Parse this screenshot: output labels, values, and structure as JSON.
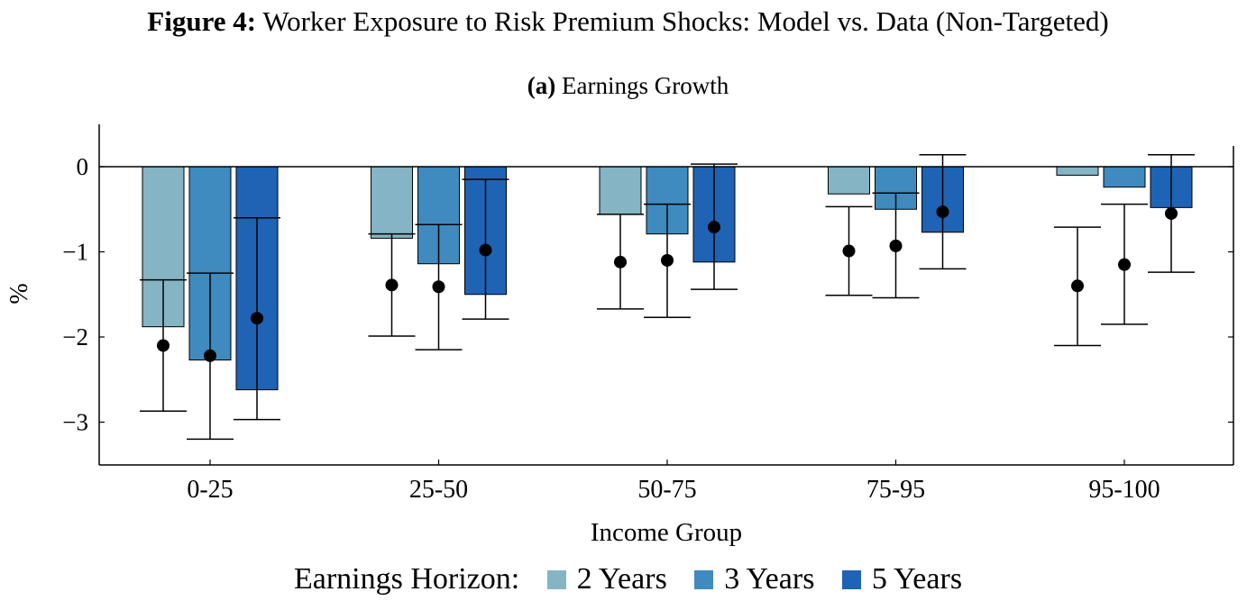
{
  "figure": {
    "label": "Figure 4:",
    "title": "Worker Exposure to Risk Premium Shocks: Model vs. Data (Non-Targeted)"
  },
  "panel": {
    "label": "(a)",
    "title": "Earnings Growth"
  },
  "legend": {
    "title": "Earnings Horizon:",
    "items": [
      "2 Years",
      "3 Years",
      "5 Years"
    ]
  },
  "colors": {
    "2 Years": "#85b4c5",
    "3 Years": "#3f8bbf",
    "5 Years": "#1f63b5"
  },
  "chart_data": {
    "type": "bar",
    "title": "Earnings Growth",
    "xlabel": "Income Group",
    "ylabel": "%",
    "ylim": [
      -3.5,
      0.5
    ],
    "yticks": [
      0,
      -1,
      -2,
      -3
    ],
    "ytick_labels": [
      "0",
      "−1",
      "−2",
      "−3"
    ],
    "categories": [
      "0-25",
      "25-50",
      "50-75",
      "75-95",
      "95-100"
    ],
    "series": [
      {
        "name": "2 Years",
        "model_values": [
          -1.88,
          -0.84,
          -0.56,
          -0.32,
          -0.1
        ],
        "data_points": [
          -2.1,
          -1.39,
          -1.12,
          -0.99,
          -1.4
        ],
        "ci_low": [
          -2.87,
          -1.99,
          -1.67,
          -1.51,
          -2.1
        ],
        "ci_high": [
          -1.33,
          -0.79,
          -0.56,
          -0.47,
          -0.71
        ]
      },
      {
        "name": "3 Years",
        "model_values": [
          -2.27,
          -1.14,
          -0.79,
          -0.5,
          -0.24
        ],
        "data_points": [
          -2.22,
          -1.41,
          -1.1,
          -0.93,
          -1.15
        ],
        "ci_low": [
          -3.2,
          -2.15,
          -1.77,
          -1.54,
          -1.85
        ],
        "ci_high": [
          -1.25,
          -0.68,
          -0.44,
          -0.31,
          -0.44
        ]
      },
      {
        "name": "5 Years",
        "model_values": [
          -2.62,
          -1.5,
          -1.12,
          -0.77,
          -0.48
        ],
        "data_points": [
          -1.78,
          -0.98,
          -0.71,
          -0.53,
          -0.55
        ],
        "ci_low": [
          -2.97,
          -1.79,
          -1.44,
          -1.2,
          -1.24
        ],
        "ci_high": [
          -0.6,
          -0.15,
          0.03,
          0.14,
          0.14
        ]
      }
    ],
    "legend_position": "bottom",
    "grid": false
  }
}
